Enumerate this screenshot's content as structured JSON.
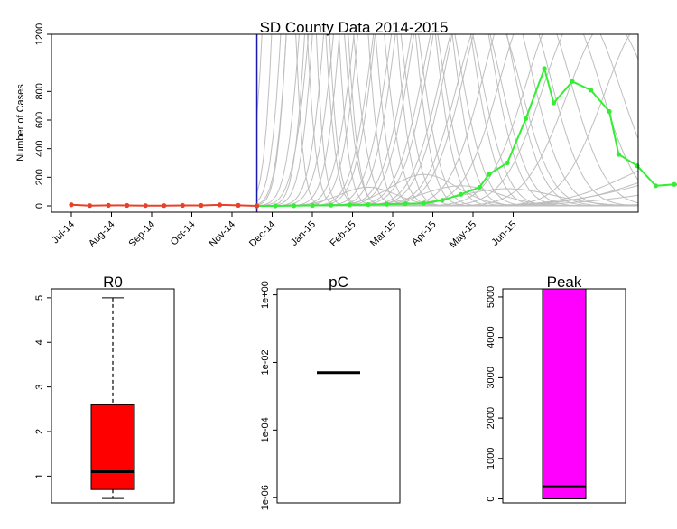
{
  "chart_data": [
    {
      "type": "line",
      "title": "SD County Data 2014-2015",
      "xlabel": "",
      "ylabel": "Number of Cases",
      "ylim": [
        0,
        1200
      ],
      "yticks": [
        0,
        200,
        400,
        600,
        800,
        1200
      ],
      "x_tick_labels": [
        "Jul-14",
        "Aug-14",
        "Sep-14",
        "Oct-14",
        "Nov-14",
        "Dec-14",
        "Jan-15",
        "Feb-15",
        "Mar-15",
        "Apr-15",
        "May-15",
        "Jun-15"
      ],
      "vertical_line_week": 20,
      "colors": {
        "observed": "#e8402a",
        "forecast": "#33ee33",
        "projections": "#bebebe",
        "cutoff": "#1a1ab0"
      },
      "observed": {
        "weeks": [
          0,
          2,
          4,
          6,
          8,
          10,
          12,
          14,
          16,
          18,
          20
        ],
        "values": [
          8,
          2,
          4,
          3,
          2,
          2,
          3,
          3,
          7,
          4,
          0
        ]
      },
      "forecast": {
        "weeks": [
          20,
          22,
          24,
          26,
          28,
          30,
          32,
          34,
          36,
          38,
          40,
          42,
          44,
          45,
          47,
          49,
          51,
          52,
          54,
          56,
          58,
          59,
          61,
          63,
          65,
          67,
          69,
          71,
          73
        ],
        "values": [
          0,
          0,
          1,
          3,
          5,
          7,
          9,
          12,
          15,
          18,
          40,
          80,
          130,
          220,
          300,
          610,
          960,
          720,
          870,
          810,
          660,
          360,
          280,
          140,
          150,
          140,
          85,
          55,
          20
        ]
      },
      "projections": [
        {
          "peak_week": 22,
          "peak": 5000,
          "width": 1.3
        },
        {
          "peak_week": 23,
          "peak": 4500,
          "width": 1.5
        },
        {
          "peak_week": 24,
          "peak": 5200,
          "width": 1.4
        },
        {
          "peak_week": 25,
          "peak": 3800,
          "width": 1.6
        },
        {
          "peak_week": 25.5,
          "peak": 4000,
          "width": 1.5
        },
        {
          "peak_week": 26,
          "peak": 4800,
          "width": 1.7
        },
        {
          "peak_week": 27,
          "peak": 3000,
          "width": 1.8
        },
        {
          "peak_week": 27.5,
          "peak": 3500,
          "width": 1.6
        },
        {
          "peak_week": 28,
          "peak": 2500,
          "width": 2.0
        },
        {
          "peak_week": 29,
          "peak": 4200,
          "width": 1.9
        },
        {
          "peak_week": 30,
          "peak": 3200,
          "width": 2.0
        },
        {
          "peak_week": 31,
          "peak": 2600,
          "width": 2.2
        },
        {
          "peak_week": 32,
          "peak": 3600,
          "width": 2.1
        },
        {
          "peak_week": 33,
          "peak": 2200,
          "width": 2.3
        },
        {
          "peak_week": 34,
          "peak": 3000,
          "width": 2.3
        },
        {
          "peak_week": 35,
          "peak": 2000,
          "width": 2.4
        },
        {
          "peak_week": 36,
          "peak": 2800,
          "width": 2.5
        },
        {
          "peak_week": 37,
          "peak": 1900,
          "width": 2.6
        },
        {
          "peak_week": 38,
          "peak": 2400,
          "width": 2.6
        },
        {
          "peak_week": 39,
          "peak": 1700,
          "width": 2.8
        },
        {
          "peak_week": 40,
          "peak": 2100,
          "width": 2.9
        },
        {
          "peak_week": 41,
          "peak": 1600,
          "width": 3.0
        },
        {
          "peak_week": 42,
          "peak": 1900,
          "width": 3.1
        },
        {
          "peak_week": 43,
          "peak": 1500,
          "width": 3.2
        },
        {
          "peak_week": 44,
          "peak": 1800,
          "width": 3.3
        },
        {
          "peak_week": 45,
          "peak": 1400,
          "width": 3.4
        },
        {
          "peak_week": 46,
          "peak": 1600,
          "width": 3.5
        },
        {
          "peak_week": 48,
          "peak": 1500,
          "width": 3.6
        },
        {
          "peak_week": 50,
          "peak": 1450,
          "width": 3.8
        },
        {
          "peak_week": 53,
          "peak": 1400,
          "width": 4.0
        },
        {
          "peak_week": 55,
          "peak": 1350,
          "width": 4.2
        },
        {
          "peak_week": 58,
          "peak": 1300,
          "width": 4.5
        },
        {
          "peak_week": 62,
          "peak": 1300,
          "width": 4.5
        },
        {
          "peak_week": 32,
          "peak": 130,
          "width": 3.0
        },
        {
          "peak_week": 38,
          "peak": 220,
          "width": 3.5
        },
        {
          "peak_week": 42,
          "peak": 140,
          "width": 4.0
        },
        {
          "peak_week": 47,
          "peak": 120,
          "width": 5.0
        },
        {
          "peak_week": 67,
          "peak": 350,
          "width": 7.0
        },
        {
          "peak_week": 70,
          "peak": 300,
          "width": 8.0
        },
        {
          "peak_week": 71,
          "peak": 260,
          "width": 9.0
        },
        {
          "peak_week": 74,
          "peak": 170,
          "width": 10.0
        },
        {
          "peak_week": 85,
          "peak": 60,
          "width": 12.0
        },
        {
          "peak_week": 95,
          "peak": 120,
          "width": 14.0
        },
        {
          "peak_week": 95,
          "peak": 80,
          "width": 10.0
        },
        {
          "peak_week": 95,
          "peak": 45,
          "width": 8.0
        }
      ]
    },
    {
      "type": "boxplot",
      "title": "R0",
      "scale": "linear",
      "ylim": [
        0.4,
        5.2
      ],
      "yticks": [
        1,
        2,
        3,
        4,
        5
      ],
      "ytick_labels": [
        "1",
        "2",
        "3",
        "4",
        "5"
      ],
      "whisker_low": 0.5,
      "q1": 0.7,
      "median": 1.1,
      "q3": 2.6,
      "whisker_high": 5.0,
      "fill": "#ff0000"
    },
    {
      "type": "boxplot",
      "title": "pC",
      "scale": "log",
      "ylim": [
        7e-07,
        1.5
      ],
      "yticks": [
        1e-06,
        0.0001,
        0.01,
        1
      ],
      "ytick_labels": [
        "1e-06",
        "1e-04",
        "1e-02",
        "1e+00"
      ],
      "median": 0.005,
      "fill": "#ffffff"
    },
    {
      "type": "boxplot",
      "title": "Peak",
      "scale": "linear",
      "ylim": [
        -100,
        5200
      ],
      "yticks": [
        0,
        1000,
        2000,
        3000,
        4000,
        5000
      ],
      "ytick_labels": [
        "0",
        "1000",
        "2000",
        "3000",
        "4000",
        "5000"
      ],
      "q1": 0,
      "median": 300,
      "q3": 5200,
      "fill": "#ff00ff"
    }
  ]
}
